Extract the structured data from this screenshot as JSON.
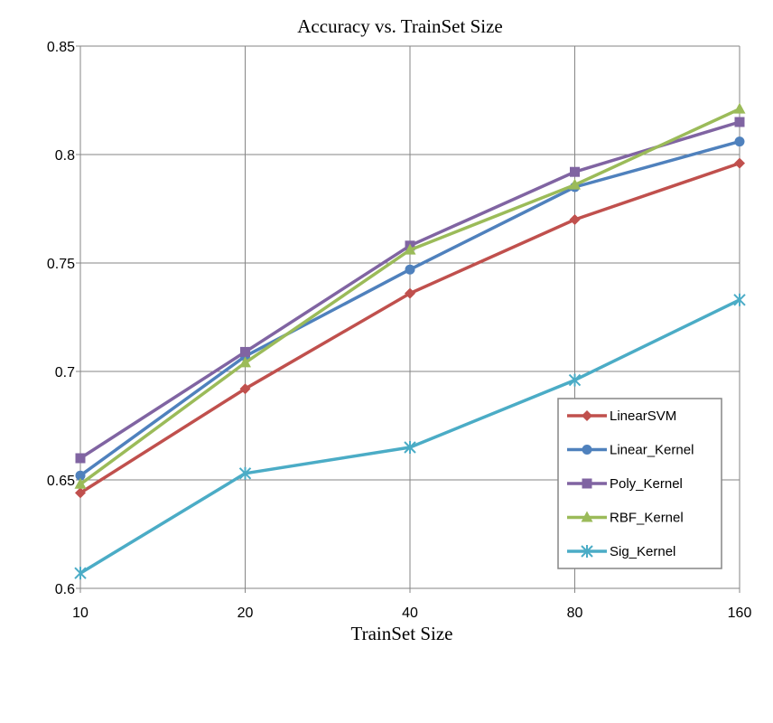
{
  "chart_data": {
    "type": "line",
    "title": "Accuracy vs. TrainSet Size",
    "xlabel": "TrainSet Size",
    "ylabel": "",
    "categories": [
      "10",
      "20",
      "40",
      "80",
      "160"
    ],
    "ylim": [
      0.6,
      0.85
    ],
    "yticks": [
      "0.6",
      "0.65",
      "0.7",
      "0.75",
      "0.8",
      "0.85"
    ],
    "grid": true,
    "legend_position": "right",
    "series": [
      {
        "name": "LinearSVM",
        "color": "#C0504D",
        "marker": "diamond",
        "values": [
          0.644,
          0.692,
          0.736,
          0.77,
          0.796
        ]
      },
      {
        "name": "Linear_Kernel",
        "color": "#4F81BD",
        "marker": "circle",
        "values": [
          0.652,
          0.707,
          0.747,
          0.785,
          0.806
        ]
      },
      {
        "name": "Poly_Kernel",
        "color": "#8064A2",
        "marker": "square",
        "values": [
          0.66,
          0.709,
          0.758,
          0.792,
          0.815
        ]
      },
      {
        "name": "RBF_Kernel",
        "color": "#9BBB59",
        "marker": "triangle",
        "values": [
          0.648,
          0.704,
          0.756,
          0.786,
          0.821
        ]
      },
      {
        "name": "Sig_Kernel",
        "color": "#4BACC6",
        "marker": "star",
        "values": [
          0.607,
          0.653,
          0.665,
          0.696,
          0.733
        ]
      }
    ]
  }
}
